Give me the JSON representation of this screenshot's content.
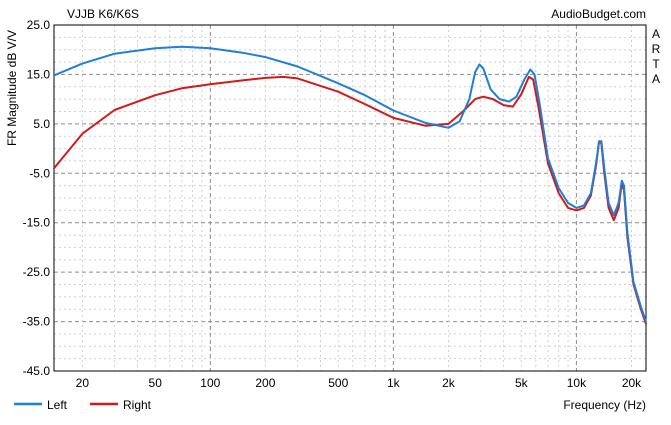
{
  "chart_data": {
    "type": "line",
    "title": "VJJB K6/K6S",
    "source_label": "AudioBudget.com",
    "side_label": "ARTA",
    "xlabel": "Frequency (Hz)",
    "ylabel": "FR Magnitude dB V/V",
    "x_scale": "log",
    "xlim": [
      14,
      24000
    ],
    "ylim": [
      -45,
      25
    ],
    "grid": true,
    "legend_position": "bottom-left",
    "y_ticks": [
      "25.0",
      "15.0",
      "5.0",
      "-5.0",
      "-15.0",
      "-25.0",
      "-35.0",
      "-45.0"
    ],
    "y_tick_values": [
      25,
      15,
      5,
      -5,
      -15,
      -25,
      -35,
      -45
    ],
    "x_ticks": [
      "20",
      "50",
      "100",
      "200",
      "500",
      "1k",
      "2k",
      "5k",
      "10k",
      "20k"
    ],
    "x_tick_values": [
      20,
      50,
      100,
      200,
      500,
      1000,
      2000,
      5000,
      10000,
      20000
    ],
    "series": [
      {
        "name": "Left",
        "color": "#1f7fd6",
        "points": [
          [
            14,
            14.8
          ],
          [
            20,
            17.2
          ],
          [
            30,
            19.2
          ],
          [
            50,
            20.3
          ],
          [
            70,
            20.6
          ],
          [
            100,
            20.3
          ],
          [
            150,
            19.4
          ],
          [
            200,
            18.5
          ],
          [
            300,
            16.6
          ],
          [
            500,
            13.2
          ],
          [
            700,
            10.8
          ],
          [
            1000,
            7.7
          ],
          [
            1500,
            5.2
          ],
          [
            2000,
            4.2
          ],
          [
            2300,
            5.5
          ],
          [
            2600,
            10.0
          ],
          [
            2800,
            15.5
          ],
          [
            2950,
            17.0
          ],
          [
            3100,
            16.2
          ],
          [
            3400,
            12.0
          ],
          [
            3800,
            10.0
          ],
          [
            4300,
            9.5
          ],
          [
            4700,
            10.5
          ],
          [
            5200,
            14.0
          ],
          [
            5600,
            16.0
          ],
          [
            5900,
            15.0
          ],
          [
            6300,
            9.0
          ],
          [
            7000,
            -2.0
          ],
          [
            8000,
            -8.0
          ],
          [
            9000,
            -11.0
          ],
          [
            10000,
            -12.0
          ],
          [
            11000,
            -11.5
          ],
          [
            12000,
            -9.0
          ],
          [
            12800,
            -3.0
          ],
          [
            13300,
            1.5
          ],
          [
            13700,
            1.5
          ],
          [
            14200,
            -4.0
          ],
          [
            15000,
            -11.0
          ],
          [
            16000,
            -13.5
          ],
          [
            17000,
            -11.0
          ],
          [
            17700,
            -6.5
          ],
          [
            18200,
            -7.5
          ],
          [
            19000,
            -17.0
          ],
          [
            20500,
            -27.0
          ],
          [
            22500,
            -32.0
          ],
          [
            24000,
            -35.0
          ]
        ]
      },
      {
        "name": "Right",
        "color": "#d11a1a",
        "points": [
          [
            14,
            -4.0
          ],
          [
            20,
            3.0
          ],
          [
            30,
            7.8
          ],
          [
            50,
            10.8
          ],
          [
            70,
            12.2
          ],
          [
            100,
            13.0
          ],
          [
            150,
            13.8
          ],
          [
            200,
            14.3
          ],
          [
            250,
            14.5
          ],
          [
            300,
            14.2
          ],
          [
            500,
            11.5
          ],
          [
            700,
            9.0
          ],
          [
            1000,
            6.2
          ],
          [
            1500,
            4.6
          ],
          [
            2000,
            5.0
          ],
          [
            2400,
            7.5
          ],
          [
            2800,
            10.0
          ],
          [
            3100,
            10.5
          ],
          [
            3500,
            10.0
          ],
          [
            4000,
            8.8
          ],
          [
            4500,
            8.5
          ],
          [
            5000,
            11.0
          ],
          [
            5500,
            14.5
          ],
          [
            5800,
            14.0
          ],
          [
            6200,
            8.5
          ],
          [
            7000,
            -3.0
          ],
          [
            8000,
            -9.0
          ],
          [
            9000,
            -12.0
          ],
          [
            10000,
            -12.5
          ],
          [
            11000,
            -12.0
          ],
          [
            12000,
            -9.5
          ],
          [
            12800,
            -3.5
          ],
          [
            13300,
            1.5
          ],
          [
            13700,
            1.0
          ],
          [
            14200,
            -5.0
          ],
          [
            15000,
            -12.0
          ],
          [
            16000,
            -14.5
          ],
          [
            17000,
            -12.0
          ],
          [
            17700,
            -7.0
          ],
          [
            18200,
            -8.5
          ],
          [
            19000,
            -18.0
          ],
          [
            20500,
            -27.5
          ],
          [
            22500,
            -32.5
          ],
          [
            24000,
            -35.5
          ]
        ]
      }
    ]
  }
}
